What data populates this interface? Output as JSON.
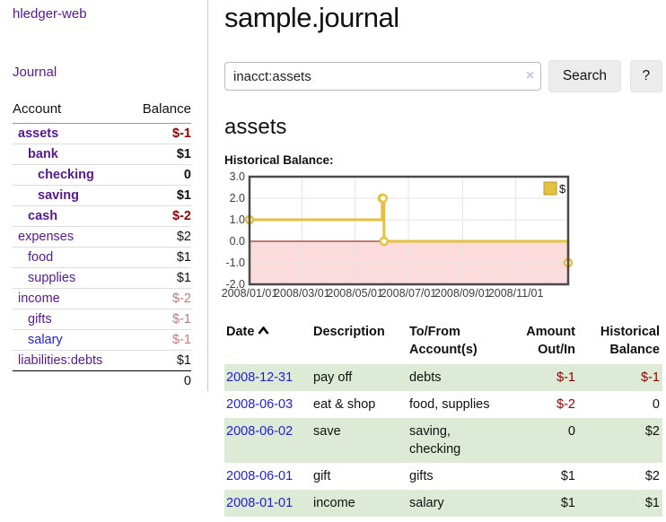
{
  "sidebar": {
    "app_title": "hledger-web",
    "nav": {
      "journal_label": "Journal"
    },
    "accounts_table": {
      "headers": {
        "account": "Account",
        "balance": "Balance"
      },
      "rows": [
        {
          "account": "assets",
          "balance": "$-1",
          "depth": 1,
          "bold": true,
          "balance_style": "neg-strong"
        },
        {
          "account": "bank",
          "balance": "$1",
          "depth": 2,
          "bold": true,
          "balance_style": "pos"
        },
        {
          "account": "checking",
          "balance": "0",
          "depth": 3,
          "bold": true,
          "balance_style": "pos"
        },
        {
          "account": "saving",
          "balance": "$1",
          "depth": 3,
          "bold": true,
          "balance_style": "pos"
        },
        {
          "account": "cash",
          "balance": "$-2",
          "depth": 2,
          "bold": true,
          "balance_style": "neg-strong"
        },
        {
          "account": "expenses",
          "balance": "$2",
          "depth": 1,
          "bold": false,
          "balance_style": "pos"
        },
        {
          "account": "food",
          "balance": "$1",
          "depth": 2,
          "bold": false,
          "balance_style": "pos"
        },
        {
          "account": "supplies",
          "balance": "$1",
          "depth": 2,
          "bold": false,
          "balance_style": "pos"
        },
        {
          "account": "income",
          "balance": "$-2",
          "depth": 1,
          "bold": false,
          "balance_style": "neg-light"
        },
        {
          "account": "gifts",
          "balance": "$-1",
          "depth": 2,
          "bold": false,
          "balance_style": "neg-light"
        },
        {
          "account": "salary",
          "balance": "$-1",
          "depth": 2,
          "bold": false,
          "balance_style": "neg-light",
          "link_color": "blue"
        },
        {
          "account": "liabilities:debts",
          "balance": "$1",
          "depth": 1,
          "bold": false,
          "balance_style": "pos"
        }
      ],
      "total": "0"
    }
  },
  "header": {
    "title": "sample.journal"
  },
  "search": {
    "query": "inacct:assets",
    "clear_icon": "×",
    "search_label": "Search",
    "help_label": "?"
  },
  "account_page": {
    "heading": "assets",
    "chart_title": "Historical Balance:"
  },
  "chart_data": {
    "type": "line",
    "step": true,
    "title": "Historical Balance:",
    "series": [
      {
        "name": "$",
        "color": "#e6c140",
        "x": [
          "2008-01-01",
          "2008-06-01",
          "2008-06-02",
          "2008-06-03",
          "2008-12-31"
        ],
        "values": [
          1,
          2,
          2,
          0,
          -1
        ]
      }
    ],
    "xlim": [
      "2008-01-01",
      "2008-12-31"
    ],
    "ylim": [
      -2,
      3
    ],
    "yticks": [
      "3.0",
      "2.0",
      "1.0",
      "0.0",
      "-1.0",
      "-2.0"
    ],
    "xticks": [
      "2008/01/01",
      "2008/03/01",
      "2008/05/01",
      "2008/07/01",
      "2008/09/01",
      "2008/11/01"
    ],
    "legend": {
      "label": "$",
      "position": "top-right"
    },
    "grid": true,
    "colors": {
      "line": "#e6c140",
      "marker_fill": "#ffffff",
      "negative_region_fill": "#fbdbdb",
      "zero_line": "#8b0000",
      "grid": "#e3e3e3",
      "border": "#4a4a4a",
      "tick_text": "#3d3d3d"
    }
  },
  "register_table": {
    "headers": {
      "date": "Date",
      "sort_icon": "chevron-up",
      "description": "Description",
      "tofrom": "To/From Account(s)",
      "amount": "Amount Out/In",
      "balance": "Historical Balance"
    },
    "rows": [
      {
        "date": "2008-12-31",
        "description": "pay off",
        "accounts": "debts",
        "amount": "$-1",
        "balance": "$-1"
      },
      {
        "date": "2008-06-03",
        "description": "eat & shop",
        "accounts": "food, supplies",
        "amount": "$-2",
        "balance": "0"
      },
      {
        "date": "2008-06-02",
        "description": "save",
        "accounts": "saving,\nchecking",
        "amount": "0",
        "balance": "$2"
      },
      {
        "date": "2008-06-01",
        "description": "gift",
        "accounts": "gifts",
        "amount": "$1",
        "balance": "$2"
      },
      {
        "date": "2008-01-01",
        "description": "income",
        "accounts": "salary",
        "amount": "$1",
        "balance": "$1"
      }
    ]
  },
  "colors": {
    "link_purple": "#551a8b",
    "link_blue": "#2222cc",
    "negative_strong": "#8b0000",
    "negative_light": "#b97c7c",
    "row_stripe_green": "#ddead5"
  }
}
